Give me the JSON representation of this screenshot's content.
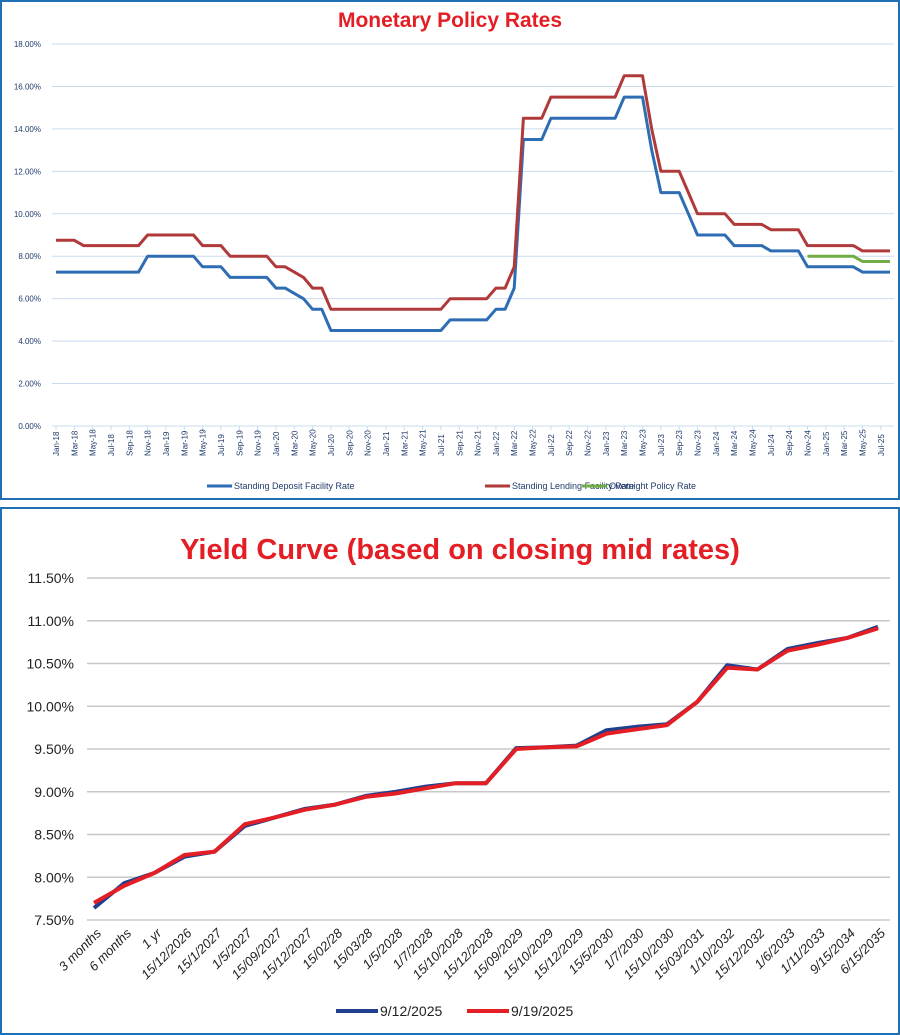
{
  "chart_data": [
    {
      "type": "line",
      "title": "Monetary Policy Rates",
      "xlabel": "",
      "ylabel": "",
      "ylim": [
        0,
        18
      ],
      "yticks": [
        "0.00%",
        "2.00%",
        "4.00%",
        "6.00%",
        "8.00%",
        "10.00%",
        "12.00%",
        "14.00%",
        "16.00%",
        "18.00%"
      ],
      "grid": true,
      "legend": "bottom",
      "xtick_labels": [
        "Jan-18",
        "Mar-18",
        "May-18",
        "Jul-18",
        "Sep-18",
        "Nov-18",
        "Jan-19",
        "Mar-19",
        "May-19",
        "Jul-19",
        "Sep-19",
        "Nov-19",
        "Jan-20",
        "Mar-20",
        "May-20",
        "Jul-20",
        "Sep-20",
        "Nov-20",
        "Jan-21",
        "Mar-21",
        "May-21",
        "Jul-21",
        "Sep-21",
        "Nov-21",
        "Jan-22",
        "Mar-22",
        "May-22",
        "Jul-22",
        "Sep-22",
        "Nov-22",
        "Jan-23",
        "Mar-23",
        "May-23",
        "Jul-23",
        "Sep-23",
        "Nov-23",
        "Jan-24",
        "Mar-24",
        "May-24",
        "Jul-24",
        "Sep-24",
        "Nov-24",
        "Jan-25",
        "Mar-25",
        "May-25",
        "Jul-25"
      ],
      "x_note": "monthly from Jan-18 to Aug-25",
      "series": [
        {
          "name": "Standing Deposit Facility Rate",
          "color": "#2e6db4",
          "values": [
            7.25,
            7.25,
            7.25,
            7.25,
            7.25,
            7.25,
            7.25,
            7.25,
            7.25,
            7.25,
            8,
            8,
            8,
            8,
            8,
            8,
            7.5,
            7.5,
            7.5,
            7,
            7,
            7,
            7,
            7,
            6.5,
            6.5,
            6.25,
            6,
            5.5,
            5.5,
            4.5,
            4.5,
            4.5,
            4.5,
            4.5,
            4.5,
            4.5,
            4.5,
            4.5,
            4.5,
            4.5,
            4.5,
            4.5,
            5,
            5,
            5,
            5,
            5,
            5.5,
            5.5,
            6.5,
            13.5,
            13.5,
            13.5,
            14.5,
            14.5,
            14.5,
            14.5,
            14.5,
            14.5,
            14.5,
            14.5,
            15.5,
            15.5,
            15.5,
            13,
            11,
            11,
            11,
            10,
            9,
            9,
            9,
            9,
            8.5,
            8.5,
            8.5,
            8.5,
            8.25,
            8.25,
            8.25,
            8.25,
            7.5,
            7.5,
            7.5,
            7.5,
            7.5,
            7.5,
            7.25,
            7.25,
            7.25,
            7.25
          ]
        },
        {
          "name": "Standing Lending Facility Rate",
          "color": "#b03a3a",
          "values": [
            8.75,
            8.75,
            8.75,
            8.5,
            8.5,
            8.5,
            8.5,
            8.5,
            8.5,
            8.5,
            9,
            9,
            9,
            9,
            9,
            9,
            8.5,
            8.5,
            8.5,
            8,
            8,
            8,
            8,
            8,
            7.5,
            7.5,
            7.25,
            7,
            6.5,
            6.5,
            5.5,
            5.5,
            5.5,
            5.5,
            5.5,
            5.5,
            5.5,
            5.5,
            5.5,
            5.5,
            5.5,
            5.5,
            5.5,
            6,
            6,
            6,
            6,
            6,
            6.5,
            6.5,
            7.5,
            14.5,
            14.5,
            14.5,
            15.5,
            15.5,
            15.5,
            15.5,
            15.5,
            15.5,
            15.5,
            15.5,
            16.5,
            16.5,
            16.5,
            14,
            12,
            12,
            12,
            11,
            10,
            10,
            10,
            10,
            9.5,
            9.5,
            9.5,
            9.5,
            9.25,
            9.25,
            9.25,
            9.25,
            8.5,
            8.5,
            8.5,
            8.5,
            8.5,
            8.5,
            8.25,
            8.25,
            8.25,
            8.25
          ]
        },
        {
          "name": "Overnight Policy Rate",
          "color": "#70ad47",
          "values": [
            null,
            null,
            null,
            null,
            null,
            null,
            null,
            null,
            null,
            null,
            null,
            null,
            null,
            null,
            null,
            null,
            null,
            null,
            null,
            null,
            null,
            null,
            null,
            null,
            null,
            null,
            null,
            null,
            null,
            null,
            null,
            null,
            null,
            null,
            null,
            null,
            null,
            null,
            null,
            null,
            null,
            null,
            null,
            null,
            null,
            null,
            null,
            null,
            null,
            null,
            null,
            null,
            null,
            null,
            null,
            null,
            null,
            null,
            null,
            null,
            null,
            null,
            null,
            null,
            null,
            null,
            null,
            null,
            null,
            null,
            null,
            null,
            null,
            null,
            null,
            null,
            null,
            null,
            null,
            null,
            null,
            null,
            8,
            8,
            8,
            8,
            8,
            8,
            7.75,
            7.75,
            7.75,
            7.75
          ]
        }
      ]
    },
    {
      "type": "line",
      "title": "Yield Curve (based on closing mid rates)",
      "xlabel": "",
      "ylabel": "",
      "ylim": [
        7.5,
        11.5
      ],
      "yticks": [
        "7.50%",
        "8.00%",
        "8.50%",
        "9.00%",
        "9.50%",
        "10.00%",
        "10.50%",
        "11.00%",
        "11.50%"
      ],
      "grid": true,
      "legend": "bottom",
      "categories": [
        "3 months",
        "6 months",
        "1 yr",
        "15/12/2026",
        "15/1/2027",
        "1/5/2027",
        "15/09/2027",
        "15/12/2027",
        "15/02/28",
        "15/03/28",
        "1/5/2028",
        "1/7/2028",
        "15/10/2028",
        "15/12/2028",
        "15/09/2029",
        "15/10/2029",
        "15/12/2029",
        "15/5/2030",
        "1/7/2030",
        "15/10/2030",
        "15/03/2031",
        "1/10/2032",
        "15/12/2032",
        "1/6/2033",
        "1/11/2033",
        "9/15/2034",
        "6/15/2035"
      ],
      "series": [
        {
          "name": "9/12/2025",
          "color": "#1f3f8f",
          "values": [
            7.64,
            7.93,
            8.05,
            8.24,
            8.3,
            8.6,
            8.7,
            8.8,
            8.85,
            8.95,
            9.0,
            9.06,
            9.1,
            9.1,
            9.51,
            9.52,
            9.54,
            9.72,
            9.76,
            9.79,
            10.05,
            10.48,
            10.43,
            10.67,
            10.74,
            10.8,
            10.93
          ]
        },
        {
          "name": "9/19/2025",
          "color": "#e31e24",
          "values": [
            7.7,
            7.9,
            8.05,
            8.26,
            8.3,
            8.62,
            8.7,
            8.79,
            8.85,
            8.94,
            8.98,
            9.04,
            9.1,
            9.1,
            9.5,
            9.52,
            9.53,
            9.68,
            9.73,
            9.78,
            10.05,
            10.45,
            10.43,
            10.65,
            10.72,
            10.8,
            10.91
          ]
        }
      ]
    }
  ]
}
